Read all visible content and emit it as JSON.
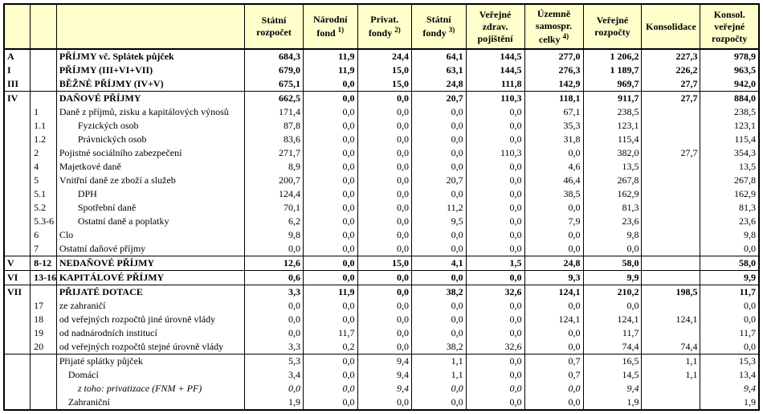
{
  "header": {
    "bg": "#ffffcc",
    "cols": [
      {
        "label": "",
        "sup": ""
      },
      {
        "label": "",
        "sup": ""
      },
      {
        "label": "",
        "sup": ""
      },
      {
        "label": "Státní rozpočet",
        "sup": ""
      },
      {
        "label": "Národní fond",
        "sup": "1)"
      },
      {
        "label": "Privat. fondy",
        "sup": "2)"
      },
      {
        "label": "Státní fondy",
        "sup": "3)"
      },
      {
        "label": "Veřejné zdrav. pojištění",
        "sup": ""
      },
      {
        "label": "Územně samospr. celky",
        "sup": "4)"
      },
      {
        "label": "Veřejné rozpočty",
        "sup": ""
      },
      {
        "label": "Konsolidace",
        "sup": ""
      },
      {
        "label": "Konsol. veřejné rozpočty",
        "sup": ""
      }
    ]
  },
  "rows": [
    {
      "c1": "A",
      "c2": "",
      "label": "PŘÍJMY vč. Splátek půjček",
      "v": [
        "684,3",
        "11,9",
        "24,4",
        "64,1",
        "144,5",
        "277,0",
        "1 206,2",
        "227,3",
        "978,9"
      ],
      "bold": true,
      "secTop": false
    },
    {
      "c1": "I",
      "c2": "",
      "label": "PŘÍJMY (III+VI+VII)",
      "v": [
        "679,0",
        "11,9",
        "15,0",
        "63,1",
        "144,5",
        "276,3",
        "1 189,7",
        "226,2",
        "963,5"
      ],
      "bold": true
    },
    {
      "c1": "III",
      "c2": "",
      "label": "BĚŽNÉ PŘÍJMY  (IV+V)",
      "v": [
        "675,1",
        "0,0",
        "15,0",
        "24,8",
        "111,8",
        "142,9",
        "969,7",
        "27,7",
        "942,0"
      ],
      "bold": true,
      "secBot": true
    },
    {
      "c1": "IV",
      "c2": "",
      "label": "DAŇOVÉ PŘÍJMY",
      "v": [
        "662,5",
        "0,0",
        "0,0",
        "20,7",
        "110,3",
        "118,1",
        "911,7",
        "27,7",
        "884,0"
      ],
      "bold": true,
      "secTop": true
    },
    {
      "c1": "",
      "c2": "1",
      "label": "Daně z příjmů, zisku a kapitálových výnosů",
      "v": [
        "171,4",
        "0,0",
        "0,0",
        "0,0",
        "0,0",
        "67,1",
        "238,5",
        "",
        "238,5"
      ]
    },
    {
      "c1": "",
      "c2": "1.1",
      "label": "Fyzických osob",
      "indent": 2,
      "v": [
        "87,8",
        "0,0",
        "0,0",
        "0,0",
        "0,0",
        "35,3",
        "123,1",
        "",
        "123,1"
      ]
    },
    {
      "c1": "",
      "c2": "1.2",
      "label": "Právnických osob",
      "indent": 2,
      "v": [
        "83,6",
        "0,0",
        "0,0",
        "0,0",
        "0,0",
        "31,8",
        "115,4",
        "",
        "115,4"
      ]
    },
    {
      "c1": "",
      "c2": "2",
      "label": "Pojistné sociálního zabezpečení",
      "v": [
        "271,7",
        "0,0",
        "0,0",
        "0,0",
        "110,3",
        "0,0",
        "382,0",
        "27,7",
        "354,3"
      ]
    },
    {
      "c1": "",
      "c2": "4",
      "label": "Majetkové daně",
      "v": [
        "8,9",
        "0,0",
        "0,0",
        "0,0",
        "0,0",
        "4,6",
        "13,5",
        "",
        "13,5"
      ]
    },
    {
      "c1": "",
      "c2": "5",
      "label": "Vnitřní daně ze zboží a služeb",
      "v": [
        "200,7",
        "0,0",
        "0,0",
        "20,7",
        "0,0",
        "46,4",
        "267,8",
        "",
        "267,8"
      ]
    },
    {
      "c1": "",
      "c2": "5.1",
      "label": "DPH",
      "indent": 2,
      "v": [
        "124,4",
        "0,0",
        "0,0",
        "0,0",
        "0,0",
        "38,5",
        "162,9",
        "",
        "162,9"
      ]
    },
    {
      "c1": "",
      "c2": "5.2",
      "label": "Spotřební daně",
      "indent": 2,
      "v": [
        "70,1",
        "0,0",
        "0,0",
        "11,2",
        "0,0",
        "0,0",
        "81,3",
        "",
        "81,3"
      ]
    },
    {
      "c1": "",
      "c2": "5.3-6",
      "label": "Ostatní daně a poplatky",
      "indent": 2,
      "v": [
        "6,2",
        "0,0",
        "0,0",
        "9,5",
        "0,0",
        "7,9",
        "23,6",
        "",
        "23,6"
      ]
    },
    {
      "c1": "",
      "c2": "6",
      "label": "Clo",
      "v": [
        "9,8",
        "0,0",
        "0,0",
        "0,0",
        "0,0",
        "0,0",
        "9,8",
        "",
        "9,8"
      ]
    },
    {
      "c1": "",
      "c2": "7",
      "label": "Ostatní daňové příjmy",
      "v": [
        "0,0",
        "0,0",
        "0,0",
        "0,0",
        "0,0",
        "0,0",
        "0,0",
        "",
        "0,0"
      ],
      "secBot": true
    },
    {
      "c1": "V",
      "c2": "8-12",
      "label": "NEDAŇOVÉ  PŘÍJMY",
      "v": [
        "12,6",
        "0,0",
        "15,0",
        "4,1",
        "1,5",
        "24,8",
        "58,0",
        "",
        "58,0"
      ],
      "bold": true,
      "secTop": true,
      "secBot": true
    },
    {
      "c1": "VI",
      "c2": "13-16",
      "label": "KAPITÁLOVÉ  PŘÍJMY",
      "v": [
        "0,6",
        "0,0",
        "0,0",
        "0,0",
        "0,0",
        "9,3",
        "9,9",
        "",
        "9,9"
      ],
      "bold": true,
      "secTop": true,
      "secBot": true
    },
    {
      "c1": "VII",
      "c2": "",
      "label": "PŘIJATÉ  DOTACE",
      "v": [
        "3,3",
        "11,9",
        "0,0",
        "38,2",
        "32,6",
        "124,1",
        "210,2",
        "198,5",
        "11,7"
      ],
      "bold": true,
      "secTop": true
    },
    {
      "c1": "",
      "c2": "17",
      "label": "ze zahraničí",
      "v": [
        "0,0",
        "0,0",
        "0,0",
        "0,0",
        "0,0",
        "0,0",
        "0,0",
        "",
        "0,0"
      ]
    },
    {
      "c1": "",
      "c2": "18",
      "label": "od veřejných rozpočtů jiné úrovně vlády",
      "v": [
        "0,0",
        "0,0",
        "0,0",
        "0,0",
        "0,0",
        "124,1",
        "124,1",
        "124,1",
        "0,0"
      ]
    },
    {
      "c1": "",
      "c2": "19",
      "label": "od nadnárodních institucí",
      "v": [
        "0,0",
        "11,7",
        "0,0",
        "0,0",
        "0,0",
        "0,0",
        "11,7",
        "",
        "11,7"
      ]
    },
    {
      "c1": "",
      "c2": "20",
      "label": "od veřejných rozpočtů stejné úrovně vlády",
      "v": [
        "3,3",
        "0,2",
        "0,0",
        "38,2",
        "32,6",
        "0,0",
        "74,4",
        "74,4",
        "0,0"
      ],
      "secBot": true
    },
    {
      "c1": "",
      "c2": "",
      "label": "Přijaté splátky půjček",
      "v": [
        "5,3",
        "0,0",
        "9,4",
        "1,1",
        "0,0",
        "0,7",
        "16,5",
        "1,1",
        "15,3"
      ],
      "secTop": true
    },
    {
      "c1": "",
      "c2": "",
      "label": "Domácí",
      "indent": 1,
      "v": [
        "3,4",
        "0,0",
        "9,4",
        "1,1",
        "0,0",
        "0,7",
        "14,5",
        "1,1",
        "13,4"
      ]
    },
    {
      "c1": "",
      "c2": "",
      "label": "z toho: privatizace (FNM + PF)",
      "indent": 2,
      "italic": true,
      "v": [
        "0,0",
        "0,0",
        "9,4",
        "0,0",
        "0,0",
        "0,0",
        "9,4",
        "",
        "9,4"
      ]
    },
    {
      "c1": "",
      "c2": "",
      "label": "Zahraniční",
      "indent": 1,
      "v": [
        "1,9",
        "0,0",
        "0,0",
        "0,0",
        "0,0",
        "0,0",
        "1,9",
        "",
        "1,9"
      ],
      "last": true
    }
  ]
}
